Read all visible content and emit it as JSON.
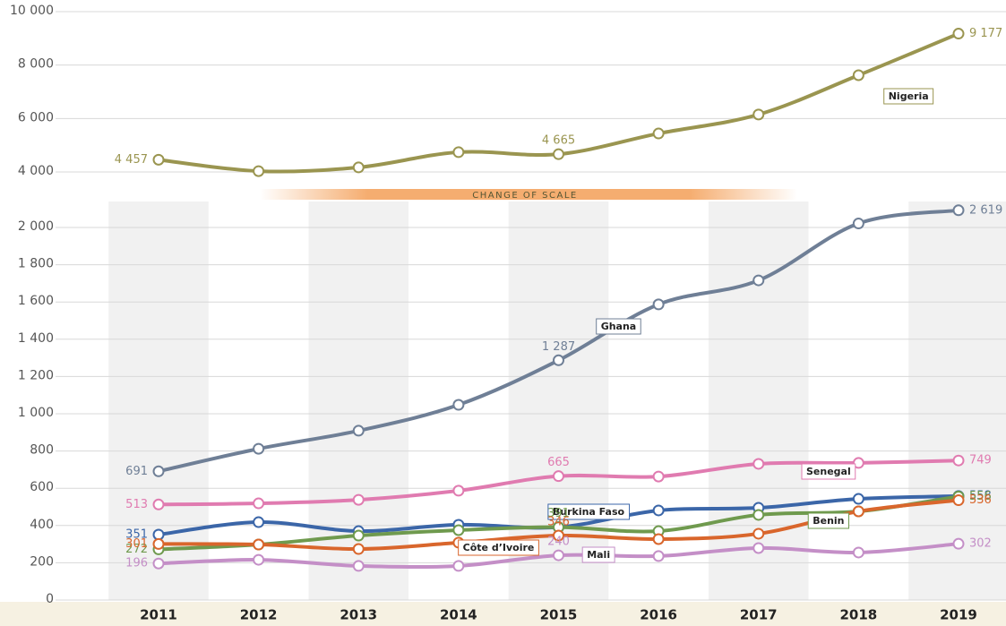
{
  "chart_data": {
    "type": "line",
    "annotation": "CHANGE OF SCALE",
    "categories": [
      "2011",
      "2012",
      "2013",
      "2014",
      "2015",
      "2016",
      "2017",
      "2018",
      "2019"
    ],
    "ylim": [
      0,
      10000
    ],
    "scale_break": [
      2000,
      4000
    ],
    "yticks": [
      0,
      200,
      400,
      600,
      800,
      {
        "value": 1000,
        "label": "1 000"
      },
      {
        "value": 1200,
        "label": "1 200"
      },
      {
        "value": 1400,
        "label": "1 400"
      },
      {
        "value": 1600,
        "label": "1 600"
      },
      {
        "value": 1800,
        "label": "1 800"
      },
      {
        "value": 2000,
        "label": "2 000"
      },
      {
        "value": 4000,
        "label": "4 000"
      },
      {
        "value": 6000,
        "label": "6 000"
      },
      {
        "value": 8000,
        "label": "8 000"
      },
      {
        "value": 10000,
        "label": "10 000"
      }
    ],
    "grid": true,
    "series": [
      {
        "name": "Nigeria",
        "color": "#9a9550",
        "values": [
          4457,
          4030,
          4170,
          4740,
          4665,
          5440,
          6150,
          7620,
          9177
        ],
        "value_labels": [
          "4 457",
          null,
          null,
          null,
          "4 665",
          null,
          null,
          null,
          "9 177"
        ]
      },
      {
        "name": "Ghana",
        "color": "#6f7f96",
        "values": [
          691,
          812,
          909,
          1048,
          1287,
          1587,
          1716,
          2144,
          2619
        ],
        "value_labels": [
          "691",
          null,
          null,
          null,
          "1 287",
          null,
          null,
          null,
          "2 619"
        ]
      },
      {
        "name": "Senegal",
        "color": "#e07bb0",
        "values": [
          513,
          519,
          538,
          587,
          665,
          663,
          731,
          736,
          749
        ],
        "value_labels": [
          "513",
          null,
          null,
          null,
          "665",
          null,
          null,
          null,
          "749"
        ]
      },
      {
        "name": "Burkina Faso",
        "color": "#3b66a8",
        "values": [
          351,
          418,
          370,
          404,
          391,
          481,
          495,
          543,
          558
        ],
        "value_labels": [
          "351",
          null,
          null,
          null,
          "391",
          null,
          null,
          null,
          "558"
        ]
      },
      {
        "name": "Benin",
        "color": "#6f9a4e",
        "values": [
          272,
          298,
          346,
          375,
          391,
          370,
          457,
          476,
          556
        ],
        "value_labels": [
          "272",
          null,
          null,
          null,
          "391",
          null,
          null,
          null,
          "556"
        ]
      },
      {
        "name": "Côte d’Ivoire",
        "color": "#d9662c",
        "values": [
          301,
          298,
          274,
          308,
          346,
          327,
          356,
          476,
          536
        ],
        "value_labels": [
          "301",
          null,
          null,
          null,
          "346",
          null,
          null,
          null,
          "536"
        ]
      },
      {
        "name": "Mali",
        "color": "#c48fc7",
        "values": [
          196,
          216,
          183,
          183,
          240,
          236,
          279,
          255,
          302
        ],
        "value_labels": [
          "196",
          null,
          null,
          null,
          "240",
          null,
          null,
          null,
          "302"
        ]
      }
    ]
  }
}
